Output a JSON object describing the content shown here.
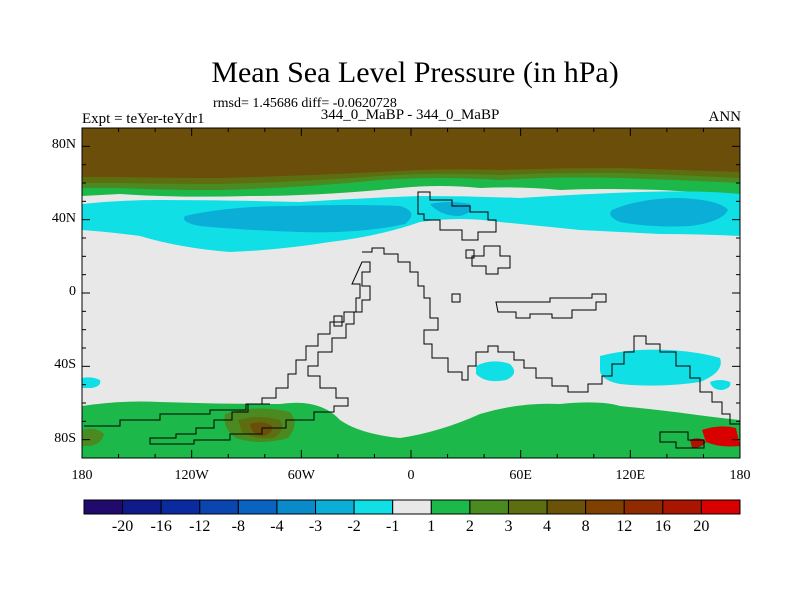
{
  "title": "Mean Sea Level Pressure (in hPa)",
  "stats": "rmsd= 1.45686 diff= -0.0620728",
  "expt_label": "Expt = teYer-teYdr1",
  "center_label": "344_0_MaBP - 344_0_MaBP",
  "season_label": "ANN",
  "y_axis": {
    "ticks": [
      {
        "value": 80,
        "label": "80N"
      },
      {
        "value": 40,
        "label": "40N"
      },
      {
        "value": 0,
        "label": "0"
      },
      {
        "value": -40,
        "label": "40S"
      },
      {
        "value": -80,
        "label": "80S"
      }
    ],
    "range": [
      -90,
      90
    ]
  },
  "x_axis": {
    "ticks": [
      {
        "value": -180,
        "label": "180"
      },
      {
        "value": -120,
        "label": "120W"
      },
      {
        "value": -60,
        "label": "60W"
      },
      {
        "value": 0,
        "label": "0"
      },
      {
        "value": 60,
        "label": "60E"
      },
      {
        "value": 120,
        "label": "120E"
      },
      {
        "value": 180,
        "label": "180"
      }
    ],
    "range": [
      -180,
      180
    ]
  },
  "colorbar": {
    "colors": [
      "#200a6b",
      "#101a8a",
      "#0a2aa0",
      "#0b45b0",
      "#0a63c0",
      "#0a8ac8",
      "#0aaed6",
      "#10dfe6",
      "#e8e8e8",
      "#1db84a",
      "#4a8a20",
      "#5d6e10",
      "#6a5208",
      "#804000",
      "#902a00",
      "#a81500",
      "#d80000"
    ],
    "labels": [
      "-20",
      "-16",
      "-12",
      "-8",
      "-4",
      "-3",
      "-2",
      "-1",
      "1",
      "2",
      "3",
      "4",
      "8",
      "12",
      "16",
      "20"
    ]
  },
  "palette": {
    "land_fill": "#e8e8e8",
    "brown": "#6b4e0a",
    "olive": "#5d6e10",
    "dark_green": "#3f8a20",
    "green": "#1db84a",
    "cyan": "#10dfe6",
    "blue": "#0aaed6",
    "dark_red_brown": "#804000"
  }
}
